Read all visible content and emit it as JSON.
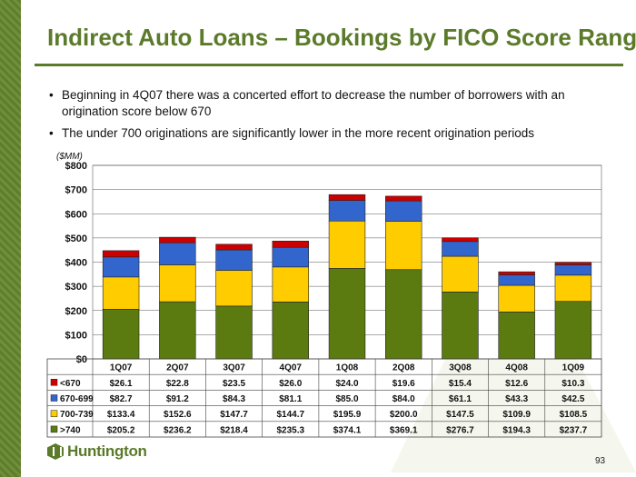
{
  "slide": {
    "title": "Indirect Auto Loans – Bookings by FICO Score Range",
    "bullets": [
      "Beginning in 4Q07 there was a concerted effort to decrease the number of borrowers with an origination score below 670",
      "The under 700 originations are significantly lower in the more recent origination periods"
    ],
    "unit_label": "($MM)",
    "logo_text": "Huntington",
    "page_number": "93"
  },
  "chart_data": {
    "type": "bar",
    "stacked": true,
    "categories": [
      "1Q07",
      "2Q07",
      "3Q07",
      "4Q07",
      "1Q08",
      "2Q08",
      "3Q08",
      "4Q08",
      "1Q09"
    ],
    "yticks": [
      "$0",
      "$100",
      "$200",
      "$300",
      "$400",
      "$500",
      "$600",
      "$700",
      "$800"
    ],
    "ylim": [
      0,
      800
    ],
    "grid": true,
    "series": [
      {
        "name": ">740",
        "color": "#5b7a0f",
        "values": [
          205.2,
          236.2,
          218.4,
          235.3,
          374.1,
          369.1,
          276.7,
          194.3,
          237.7
        ],
        "labels": [
          "$205.2",
          "$236.2",
          "$218.4",
          "$235.3",
          "$374.1",
          "$369.1",
          "$276.7",
          "$194.3",
          "$237.7"
        ]
      },
      {
        "name": "700-739",
        "color": "#ffcc00",
        "values": [
          133.4,
          152.6,
          147.7,
          144.7,
          195.9,
          200.0,
          147.5,
          109.9,
          108.5
        ],
        "labels": [
          "$133.4",
          "$152.6",
          "$147.7",
          "$144.7",
          "$195.9",
          "$200.0",
          "$147.5",
          "$109.9",
          "$108.5"
        ]
      },
      {
        "name": "670-699",
        "color": "#3366cc",
        "values": [
          82.7,
          91.2,
          84.3,
          81.1,
          85.0,
          84.0,
          61.1,
          43.3,
          42.5
        ],
        "labels": [
          "$82.7",
          "$91.2",
          "$84.3",
          "$81.1",
          "$85.0",
          "$84.0",
          "$61.1",
          "$43.3",
          "$42.5"
        ]
      },
      {
        "name": "<670",
        "color": "#cc0000",
        "values": [
          26.1,
          22.8,
          23.5,
          26.0,
          24.0,
          19.6,
          15.4,
          12.6,
          10.3
        ],
        "labels": [
          "$26.1",
          "$22.8",
          "$23.5",
          "$26.0",
          "$24.0",
          "$19.6",
          "$15.4",
          "$12.6",
          "$10.3"
        ]
      }
    ],
    "table_row_order": [
      "<670",
      "670-699",
      "700-739",
      ">740"
    ]
  }
}
